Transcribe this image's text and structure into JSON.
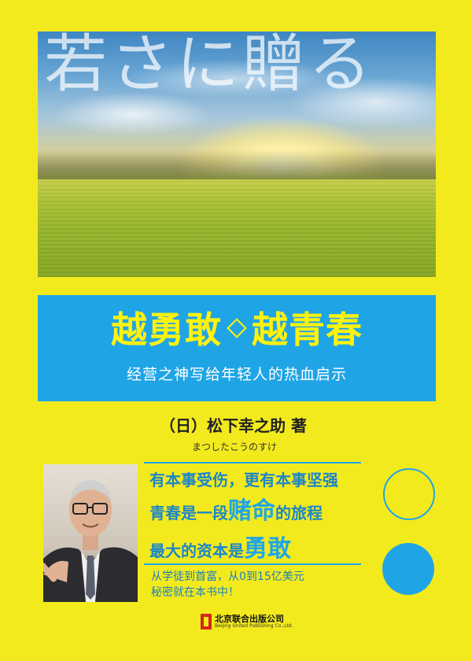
{
  "cover": {
    "jp_title": "若さに贈る",
    "main_title_left": "越勇敢",
    "main_title_right": "越青春",
    "subtitle": "经营之神写给年轻人的热血启示",
    "author_line": "（日）松下幸之助 著",
    "author_kana": "まつしたこうのすけ",
    "slogans": {
      "line1": "有本事受伤，更有本事坚强",
      "line2_pre": "青春是一段",
      "line2_big": "赌命",
      "line2_post": "的旅程",
      "line3_pre": "最大的资本是",
      "line3_big": "勇敢"
    },
    "note_line1": "从学徒到首富，从0到15亿美元",
    "note_line2": "秘密就在本书中！",
    "publisher_name": "北京联合出版公司",
    "publisher_en": "Beijing United Publishing Co.,Ltd.",
    "colors": {
      "background": "#f3ea1d",
      "band": "#1fa5e6",
      "title": "#fff20d",
      "accent_text": "#1c86c9"
    }
  }
}
